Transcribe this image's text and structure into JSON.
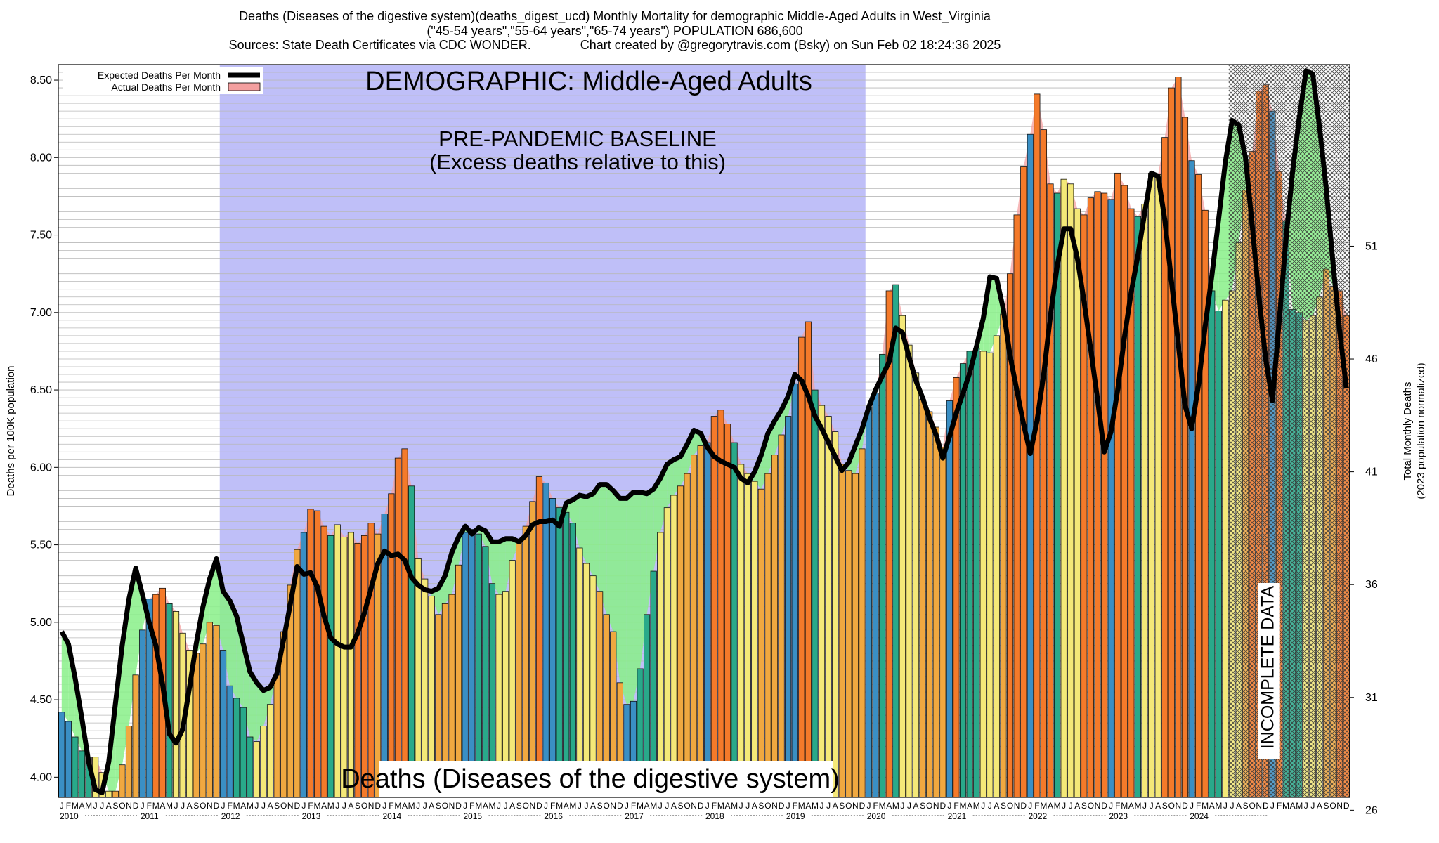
{
  "header": {
    "line1": "Deaths (Diseases of the digestive system)(deaths_digest_ucd) Monthly Mortality for demographic Middle-Aged Adults in West_Virginia",
    "line2": "(\"45-54 years\",\"55-64 years\",\"65-74 years\") POPULATION 686,600",
    "line3": "Sources: State Death Certificates via CDC WONDER.              Chart created by @gregorytravis.com (Bsky) on Sun Feb 02 18:24:36 2025"
  },
  "colors": {
    "baseline_band": "#bfbff8",
    "winter": "#3a8fc4",
    "spring": "#29a98a",
    "summer": "#f4e878",
    "autumn": "#f0a840",
    "excess": "#f47a2a",
    "deficit_fill": "#88f088",
    "excess_fill": "#f4a0a0",
    "expected_line": "#000000"
  },
  "chart_data": {
    "type": "bar",
    "title": "DEMOGRAPHIC: Middle-Aged Adults",
    "bottom_title": "Deaths (Diseases of the digestive system)",
    "annotation_baseline": [
      "PRE-PANDEMIC BASELINE",
      "(Excess deaths relative to this)"
    ],
    "annotation_incomplete": "INCOMPLETE DATA",
    "ylabel_left": "Deaths per 100K population",
    "ylabel_right": [
      "Total Monthly Deaths",
      "(2023 population normalized)"
    ],
    "ylim": [
      3.87,
      8.6
    ],
    "yticks_left": [
      "4.00",
      "4.50",
      "5.00",
      "5.50",
      "6.00",
      "6.50",
      "7.00",
      "7.50",
      "8.00",
      "8.50"
    ],
    "yticks_right": [
      "26",
      "31",
      "36",
      "41",
      "46",
      "51"
    ],
    "yticks_right_values": [
      26,
      31,
      36,
      41,
      46,
      51
    ],
    "month_letters": [
      "J",
      "F",
      "M",
      "A",
      "M",
      "J",
      "J",
      "A",
      "S",
      "O",
      "N",
      "D"
    ],
    "years": [
      "2010",
      "2011",
      "2012",
      "2013",
      "2014",
      "2015",
      "2016",
      "2017",
      "2018",
      "2019",
      "2020",
      "2021",
      "2022",
      "2023",
      "2024"
    ],
    "start": "2010-01",
    "baseline_period": [
      "2012-01",
      "2019-12"
    ],
    "incomplete_from": "2024-07",
    "legend": [
      {
        "name": "Expected Deaths Per Month",
        "style": "line"
      },
      {
        "name": "Actual Deaths Per Month",
        "style": "bar"
      }
    ],
    "series": [
      {
        "name": "Actual Deaths Per Month",
        "values": [
          4.42,
          4.36,
          4.26,
          4.17,
          4.13,
          4.13,
          4.03,
          3.91,
          3.91,
          4.08,
          4.33,
          4.66,
          4.95,
          5.15,
          5.18,
          5.22,
          5.12,
          5.07,
          4.93,
          4.82,
          4.8,
          4.86,
          5.0,
          4.98,
          4.82,
          4.59,
          4.51,
          4.45,
          4.26,
          4.23,
          4.33,
          4.47,
          4.66,
          4.94,
          5.24,
          5.47,
          5.58,
          5.73,
          5.72,
          5.62,
          5.56,
          5.63,
          5.55,
          5.58,
          5.51,
          5.56,
          5.64,
          5.57,
          5.7,
          5.83,
          6.06,
          6.12,
          5.88,
          5.41,
          5.28,
          5.17,
          5.05,
          5.12,
          5.18,
          5.37,
          5.58,
          5.6,
          5.57,
          5.49,
          5.25,
          5.18,
          5.2,
          5.4,
          5.52,
          5.62,
          5.78,
          5.94,
          5.9,
          5.8,
          5.74,
          5.71,
          5.64,
          5.48,
          5.38,
          5.3,
          5.2,
          5.05,
          4.94,
          4.61,
          4.47,
          4.49,
          4.7,
          5.05,
          5.33,
          5.58,
          5.74,
          5.82,
          5.88,
          5.96,
          6.08,
          6.14,
          6.16,
          6.33,
          6.37,
          6.28,
          6.16,
          6.02,
          5.96,
          5.91,
          5.86,
          5.96,
          6.08,
          6.21,
          6.33,
          6.54,
          6.84,
          6.94,
          6.5,
          6.4,
          6.33,
          6.23,
          6.02,
          5.98,
          5.96,
          6.12,
          6.39,
          6.48,
          6.73,
          7.14,
          7.18,
          6.98,
          6.79,
          6.61,
          6.44,
          6.36,
          6.26,
          6.13,
          6.43,
          6.58,
          6.67,
          6.75,
          6.77,
          6.75,
          6.74,
          6.85,
          6.99,
          7.25,
          7.63,
          7.94,
          8.15,
          8.41,
          8.18,
          7.83,
          7.77,
          7.86,
          7.83,
          7.67,
          7.63,
          7.74,
          7.78,
          7.77,
          7.73,
          7.9,
          7.82,
          7.67,
          7.62,
          7.7,
          7.9,
          7.89,
          8.13,
          8.45,
          8.52,
          8.26,
          7.98,
          7.89,
          7.66,
          7.14,
          7.01,
          7.08,
          7.14,
          7.45,
          7.79,
          8.04,
          8.43,
          8.47,
          8.3,
          7.91,
          7.59,
          7.02,
          7.0,
          6.95,
          6.98,
          7.1,
          7.28,
          7.17,
          7.14,
          6.98
        ]
      },
      {
        "name": "Expected Deaths Per Month",
        "values": [
          4.94,
          4.86,
          4.64,
          4.38,
          4.1,
          3.92,
          3.9,
          4.1,
          4.48,
          4.85,
          5.15,
          5.35,
          5.18,
          5.0,
          4.85,
          4.6,
          4.28,
          4.22,
          4.31,
          4.58,
          4.86,
          5.1,
          5.28,
          5.41,
          5.2,
          5.14,
          5.04,
          4.86,
          4.68,
          4.61,
          4.56,
          4.58,
          4.67,
          4.89,
          5.12,
          5.36,
          5.31,
          5.32,
          5.23,
          5.04,
          4.9,
          4.86,
          4.84,
          4.84,
          4.93,
          5.06,
          5.22,
          5.38,
          5.46,
          5.43,
          5.44,
          5.4,
          5.29,
          5.24,
          5.21,
          5.2,
          5.22,
          5.3,
          5.45,
          5.55,
          5.62,
          5.57,
          5.61,
          5.59,
          5.52,
          5.52,
          5.54,
          5.54,
          5.52,
          5.56,
          5.63,
          5.65,
          5.65,
          5.66,
          5.62,
          5.77,
          5.79,
          5.82,
          5.81,
          5.83,
          5.89,
          5.89,
          5.85,
          5.8,
          5.8,
          5.84,
          5.84,
          5.83,
          5.86,
          5.93,
          6.02,
          6.05,
          6.07,
          6.15,
          6.24,
          6.22,
          6.13,
          6.07,
          6.04,
          6.02,
          6.0,
          5.93,
          5.9,
          5.97,
          6.08,
          6.22,
          6.3,
          6.37,
          6.46,
          6.6,
          6.56,
          6.46,
          6.33,
          6.25,
          6.16,
          6.07,
          5.98,
          6.03,
          6.14,
          6.25,
          6.39,
          6.5,
          6.59,
          6.68,
          6.9,
          6.87,
          6.71,
          6.56,
          6.45,
          6.32,
          6.21,
          6.06,
          6.2,
          6.35,
          6.48,
          6.61,
          6.78,
          6.96,
          7.23,
          7.22,
          7.02,
          6.72,
          6.5,
          6.28,
          6.09,
          6.3,
          6.6,
          6.98,
          7.3,
          7.54,
          7.54,
          7.35,
          7.07,
          6.76,
          6.44,
          6.1,
          6.23,
          6.5,
          6.84,
          7.13,
          7.37,
          7.64,
          7.9,
          7.88,
          7.6,
          7.2,
          6.8,
          6.4,
          6.25,
          6.53,
          6.91,
          7.24,
          7.6,
          7.97,
          8.24,
          8.21,
          8.0,
          7.56,
          7.1,
          6.7,
          6.43,
          6.94,
          7.47,
          7.91,
          8.26,
          8.56,
          8.54,
          8.2,
          7.8,
          7.32,
          6.88,
          6.51
        ]
      }
    ]
  }
}
